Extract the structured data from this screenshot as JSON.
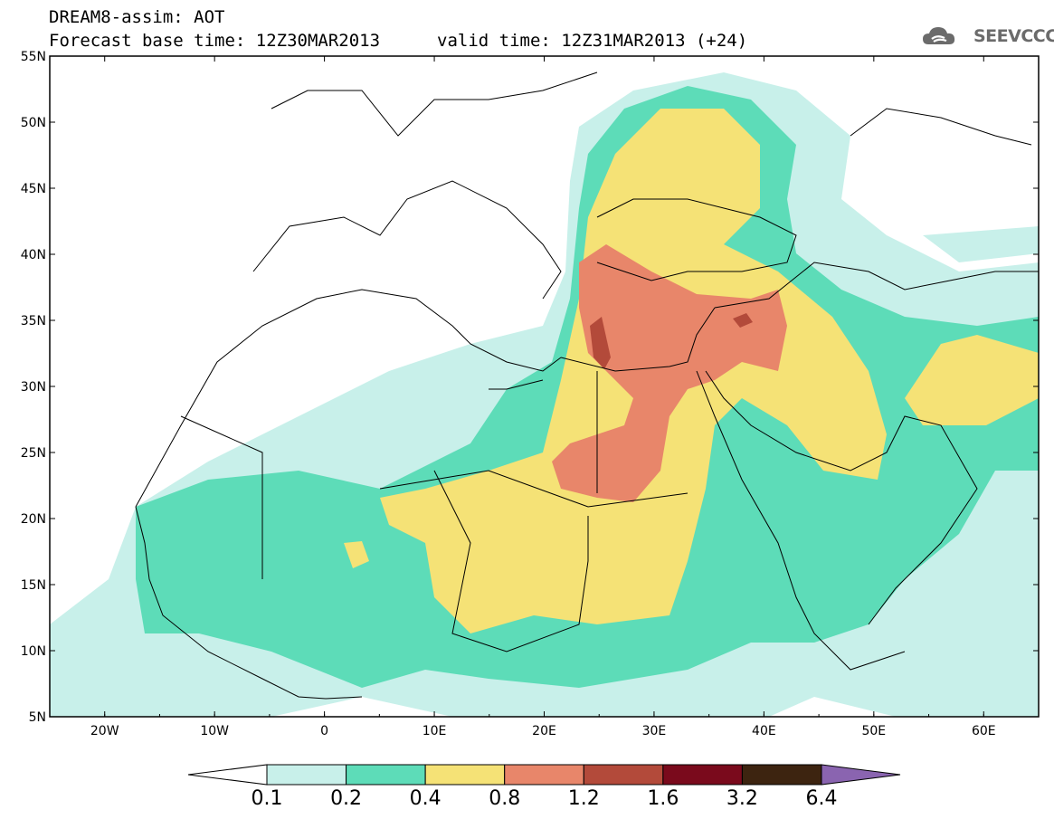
{
  "header": {
    "title": "DREAM8-assim: AOT",
    "base_time": "Forecast base time: 12Z30MAR2013",
    "valid_time": "valid time: 12Z31MAR2013 (+24)"
  },
  "logo": {
    "text": "SEEVCCC",
    "icon": "cloud-icon"
  },
  "map": {
    "lat_labels": [
      "55N",
      "50N",
      "45N",
      "40N",
      "35N",
      "30N",
      "25N",
      "20N",
      "15N",
      "10N",
      "5N"
    ],
    "lon_labels": [
      "20W",
      "10W",
      "0",
      "10E",
      "20E",
      "30E",
      "40E",
      "50E",
      "60E"
    ],
    "lon_range": [
      -25,
      65
    ],
    "lat_range": [
      5,
      55
    ]
  },
  "legend": {
    "labels": [
      "0.1",
      "0.2",
      "0.4",
      "0.8",
      "1.2",
      "1.6",
      "3.2",
      "6.4"
    ],
    "colors": [
      "#ffffff",
      "#c8f0ea",
      "#5ddcb8",
      "#f5e276",
      "#e8866a",
      "#b34a3a",
      "#7a0a1c",
      "#3d2410",
      "#8a64b0"
    ]
  },
  "colors": {
    "level1": "#c8f0ea",
    "level2": "#5ddcb8",
    "level3": "#f5e276",
    "level4": "#e8866a",
    "level5": "#b34a3a"
  }
}
